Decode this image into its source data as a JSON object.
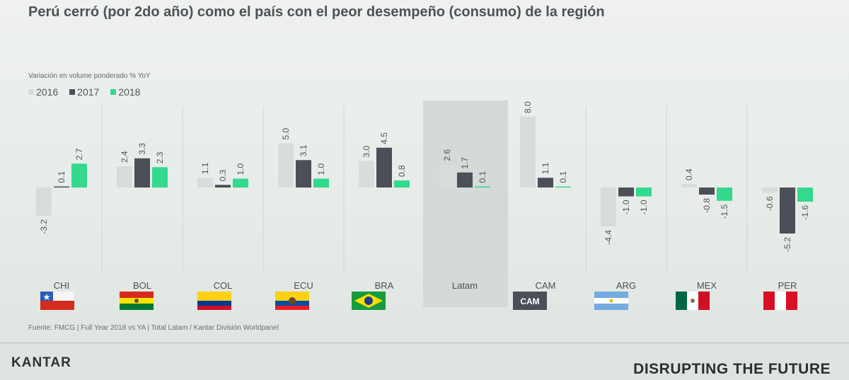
{
  "title": "Perú cerró (por 2do año) como el país con el peor desempeño (consumo) de la región",
  "source": "Fuente: FMCG | Full Year 2018 vs YA | Total Latam / Kantar División Worldpanel",
  "footer": {
    "brand_left": "KANTAR",
    "brand_right": "DISRUPTING THE FUTURE"
  },
  "colors": {
    "s2016": "#d8dcdb",
    "s2017": "#4b4f58",
    "s2018": "#33d98c"
  },
  "flags": [
    {
      "name": "chile-flag",
      "label": ""
    },
    {
      "name": "bolivia-flag",
      "label": ""
    },
    {
      "name": "colombia-flag",
      "label": ""
    },
    {
      "name": "ecuador-flag",
      "label": ""
    },
    {
      "name": "brazil-flag",
      "label": ""
    },
    {
      "name": "none",
      "label": ""
    },
    {
      "name": "cam-badge",
      "label": "CAM"
    },
    {
      "name": "argentina-flag",
      "label": ""
    },
    {
      "name": "mexico-flag",
      "label": ""
    },
    {
      "name": "peru-flag",
      "label": ""
    }
  ],
  "chart_data": {
    "type": "bar",
    "title": "Perú cerró (por 2do año) como el país con el peor desempeño (consumo) de la región",
    "subtitle": "Variación en volume ponderado % YoY",
    "categories": [
      "CHI",
      "BOL",
      "COL",
      "ECU",
      "BRA",
      "Latam",
      "CAM",
      "ARG",
      "MEX",
      "PER"
    ],
    "series": [
      {
        "name": "2016",
        "values": [
          -3.2,
          2.4,
          1.1,
          5.0,
          3.0,
          2.6,
          8.0,
          -4.4,
          0.4,
          -0.6
        ]
      },
      {
        "name": "2017",
        "values": [
          0.1,
          3.3,
          0.3,
          3.1,
          4.5,
          1.7,
          1.1,
          -1.0,
          -0.8,
          -5.2
        ]
      },
      {
        "name": "2018",
        "values": [
          2.7,
          2.3,
          1.0,
          1.0,
          0.8,
          0.1,
          0.1,
          -1.0,
          -1.5,
          -1.6
        ]
      }
    ],
    "data_labels": [
      [
        "-3.2",
        "0.1",
        "2.7"
      ],
      [
        "2.4",
        "3.3",
        "2.3"
      ],
      [
        "1.1",
        "0.3",
        "1.0"
      ],
      [
        "5.0",
        "3.1",
        "1.0"
      ],
      [
        "3.0",
        "4.5",
        "0.8"
      ],
      [
        "2.6",
        "1.7",
        "0.1"
      ],
      [
        "8.0",
        "1.1",
        "0.1"
      ],
      [
        "-4.4",
        "-1.0",
        "-1.0"
      ],
      [
        "0.4",
        "-0.8",
        "-1.5"
      ],
      [
        "-0.6",
        "-5.2",
        "-1.6"
      ]
    ],
    "highlight_category": "Latam",
    "legend_position": "top-left",
    "grid": false
  }
}
